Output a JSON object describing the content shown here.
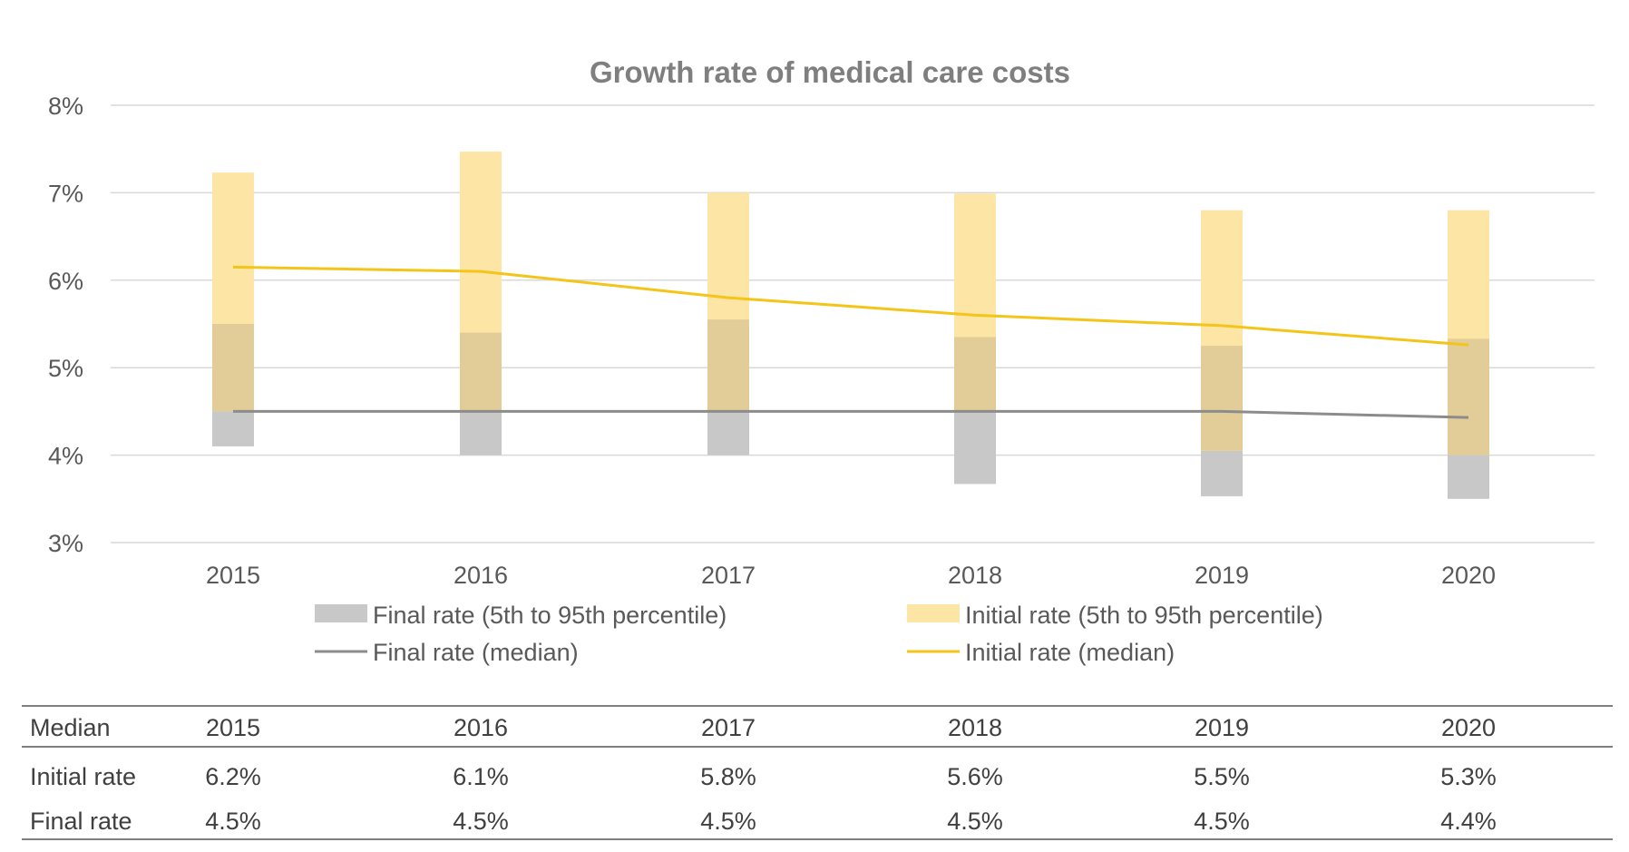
{
  "chart_data": {
    "type": "bar",
    "title": "Growth rate of medical care costs",
    "xlabel": "",
    "ylabel": "",
    "categories": [
      "2015",
      "2016",
      "2017",
      "2018",
      "2019",
      "2020"
    ],
    "ylim": [
      3,
      8
    ],
    "yticks": [
      3,
      4,
      5,
      6,
      7,
      8
    ],
    "ytick_labels": [
      "3%",
      "4%",
      "5%",
      "6%",
      "7%",
      "8%"
    ],
    "grid": true,
    "legend_position": "bottom",
    "series": [
      {
        "name": "Final rate (5th to 95th percentile)",
        "kind": "range_bar",
        "color": "#c8c8c8",
        "low": [
          4.1,
          4.0,
          4.0,
          3.67,
          3.53,
          3.5
        ],
        "high": [
          4.5,
          4.5,
          4.5,
          4.5,
          4.05,
          4.0
        ]
      },
      {
        "name": "Initial rate (5th to 95th percentile)",
        "kind": "range_bar",
        "color": "#fde5a6",
        "low": [
          4.5,
          4.5,
          4.5,
          4.5,
          4.05,
          4.0
        ],
        "high": [
          7.23,
          7.47,
          7.0,
          6.99,
          6.8,
          6.8
        ]
      },
      {
        "name": "Final rate (median)",
        "kind": "line",
        "color": "#8c8c8c",
        "values": [
          4.5,
          4.5,
          4.5,
          4.5,
          4.5,
          4.43
        ]
      },
      {
        "name": "Initial rate (median)",
        "kind": "line",
        "color": "#f4c518",
        "values": [
          6.15,
          6.1,
          5.8,
          5.6,
          5.48,
          5.26
        ]
      }
    ],
    "overlap_color": "#e2cc98",
    "overlap_ranges": {
      "low": [
        4.5,
        4.5,
        4.5,
        4.5,
        4.05,
        4.0
      ],
      "high": [
        5.5,
        5.4,
        5.55,
        5.35,
        5.25,
        5.33
      ]
    },
    "table": {
      "header": [
        "Median",
        "2015",
        "2016",
        "2017",
        "2018",
        "2019",
        "2020"
      ],
      "rows": [
        [
          "Initial rate",
          "6.2%",
          "6.1%",
          "5.8%",
          "5.6%",
          "5.5%",
          "5.3%"
        ],
        [
          "Final rate",
          "4.5%",
          "4.5%",
          "4.5%",
          "4.5%",
          "4.5%",
          "4.4%"
        ]
      ]
    }
  }
}
